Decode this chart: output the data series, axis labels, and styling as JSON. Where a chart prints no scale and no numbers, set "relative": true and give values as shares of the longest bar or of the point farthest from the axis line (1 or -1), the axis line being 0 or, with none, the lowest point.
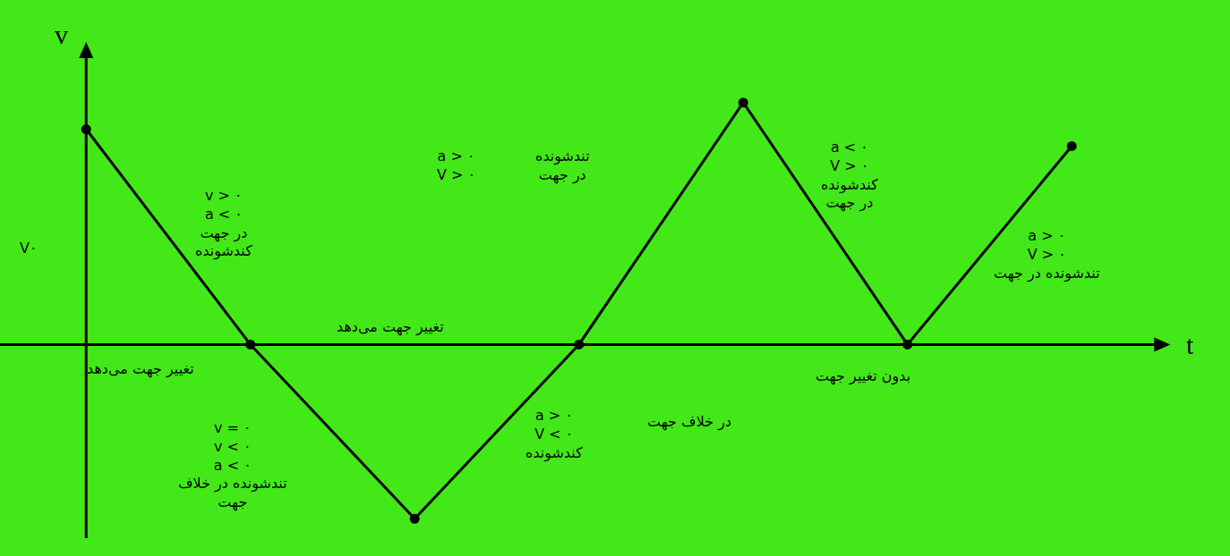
{
  "chart_data": {
    "type": "line",
    "relative": true,
    "xlabel": "t",
    "ylabel": "v",
    "categories": [
      null,
      null,
      null,
      null,
      null,
      null,
      null
    ],
    "series": [
      {
        "color": "#000000",
        "values": [
          0.89,
          0,
          -0.72,
          0,
          1,
          0,
          0.82
        ]
      }
    ],
    "marker": "circle",
    "line_style": "solid",
    "annotations": [
      "v > ۰\na < ۰\nدر جهت\nکندشونده",
      "تغییر جهت می‌دهد",
      "v = ۰\nv < ۰\na < ۰\nتندشونده در خلاف\nجهت",
      "تغییر جهت می‌دهد",
      "a > ۰\nV > ۰",
      "تندشونده\nدر جهت",
      "a > ۰\nV < ۰\nکندشونده",
      "در خلاف جهت",
      "a < ۰\nV > ۰\nکندشونده\nدر جهت",
      "بدون تغییر جهت",
      "a > ۰\nV > ۰\nتندشونده در جهت",
      "V۰"
    ]
  }
}
